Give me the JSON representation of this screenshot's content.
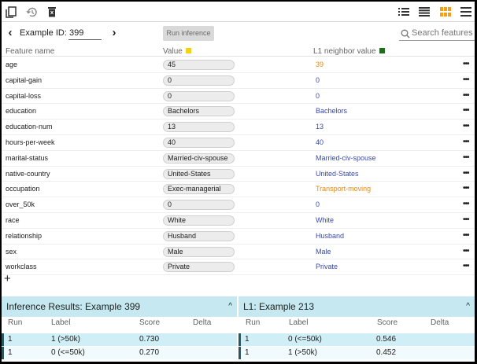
{
  "toolbar": {
    "left_icons": [
      "copy-icon",
      "history-icon",
      "delete-icon"
    ],
    "right_icons": [
      "list-view-icon",
      "compact-list-icon",
      "grid-view-icon",
      "menu-icon"
    ],
    "active_color": "#f3a018"
  },
  "nav": {
    "example_label": "Example ID:",
    "example_id": "399",
    "run_button": "Run inference",
    "search_placeholder": "Search features"
  },
  "table": {
    "headers": {
      "feature": "Feature name",
      "value": "Value",
      "neighbor": "L1 neighbor value"
    },
    "value_color": "#f1d31a",
    "neighbor_color": "#1d6d1d",
    "rows": [
      {
        "feature": "age",
        "value": "45",
        "neighbor": "39",
        "diff": true
      },
      {
        "feature": "capital-gain",
        "value": "0",
        "neighbor": "0",
        "diff": false
      },
      {
        "feature": "capital-loss",
        "value": "0",
        "neighbor": "0",
        "diff": false
      },
      {
        "feature": "education",
        "value": "Bachelors",
        "neighbor": "Bachelors",
        "diff": false
      },
      {
        "feature": "education-num",
        "value": "13",
        "neighbor": "13",
        "diff": false
      },
      {
        "feature": "hours-per-week",
        "value": "40",
        "neighbor": "40",
        "diff": false
      },
      {
        "feature": "marital-status",
        "value": "Married-civ-spouse",
        "neighbor": "Married-civ-spouse",
        "diff": false
      },
      {
        "feature": "native-country",
        "value": "United-States",
        "neighbor": "United-States",
        "diff": false
      },
      {
        "feature": "occupation",
        "value": "Exec-managerial",
        "neighbor": "Transport-moving",
        "diff": true
      },
      {
        "feature": "over_50k",
        "value": "0",
        "neighbor": "0",
        "diff": false
      },
      {
        "feature": "race",
        "value": "White",
        "neighbor": "White",
        "diff": false
      },
      {
        "feature": "relationship",
        "value": "Husband",
        "neighbor": "Husband",
        "diff": false
      },
      {
        "feature": "sex",
        "value": "Male",
        "neighbor": "Male",
        "diff": false
      },
      {
        "feature": "workclass",
        "value": "Private",
        "neighbor": "Private",
        "diff": false
      }
    ],
    "more_label": "•••",
    "add_label": "+",
    "same_color": "#3949ab",
    "diff_color": "#e8890c"
  },
  "results": {
    "panels": [
      {
        "title": "Inference Results: Example 399",
        "columns": [
          "Run",
          "Label",
          "Score",
          "Delta"
        ],
        "rows": [
          {
            "run": "1",
            "label": "1 (>50k)",
            "score": "0.730",
            "delta": ""
          },
          {
            "run": "1",
            "label": "0 (<=50k)",
            "score": "0.270",
            "delta": ""
          }
        ]
      },
      {
        "title": "L1: Example 213",
        "columns": [
          "Run",
          "Label",
          "Score",
          "Delta"
        ],
        "rows": [
          {
            "run": "1",
            "label": "0 (<=50k)",
            "score": "0.546",
            "delta": ""
          },
          {
            "run": "1",
            "label": "1 (>50k)",
            "score": "0.452",
            "delta": ""
          }
        ]
      }
    ],
    "caret": "^"
  }
}
